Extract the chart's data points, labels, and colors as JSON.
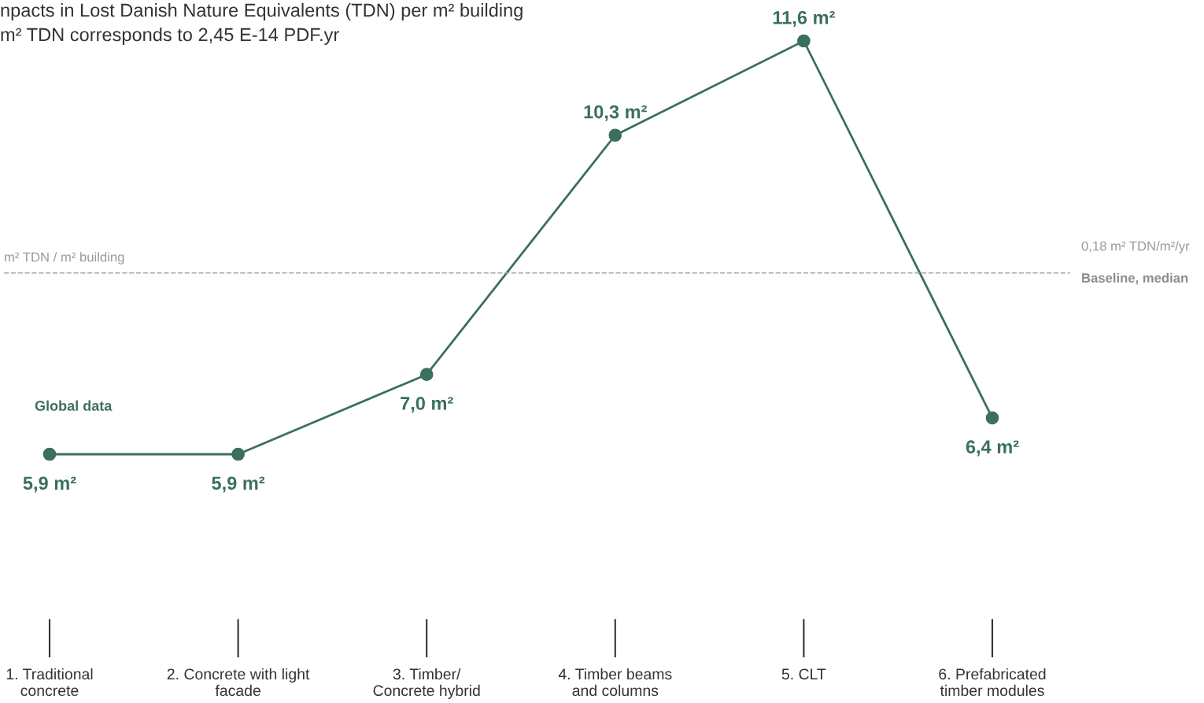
{
  "chart_data": {
    "type": "line",
    "title": "npacts in Lost Danish Nature Equivalents (TDN) per m² building",
    "subtitle": "m² TDN corresponds to 2,45 E-14 PDF.yr",
    "categories": [
      "1. Traditional\nconcrete",
      "2. Concrete with light\nfacade",
      "3. Timber/\nConcrete hybrid",
      "4. Timber beams\nand columns",
      "5. CLT",
      "6. Prefabricated\ntimber modules"
    ],
    "series": [
      {
        "color": "#3b6f60",
        "values": [
          5.9,
          5.9,
          7.0,
          10.3,
          11.6,
          6.4
        ],
        "value_labels": [
          "5,9 m²",
          "5,9 m²",
          "7,0 m²",
          "10,3 m²",
          "11,6 m²",
          "6,4 m²"
        ]
      }
    ],
    "marker": "circle",
    "line_style": "solid",
    "legend": false,
    "ref_lines": [
      {
        "axis": "y",
        "value": 8.4,
        "label": "Baseline, median",
        "color": "#a6a6a6",
        "line_style": "dashed"
      }
    ],
    "annotations": [
      "Global data",
      "m² TDN / m² building",
      "0,18 m² TDN/m²/yr"
    ]
  }
}
